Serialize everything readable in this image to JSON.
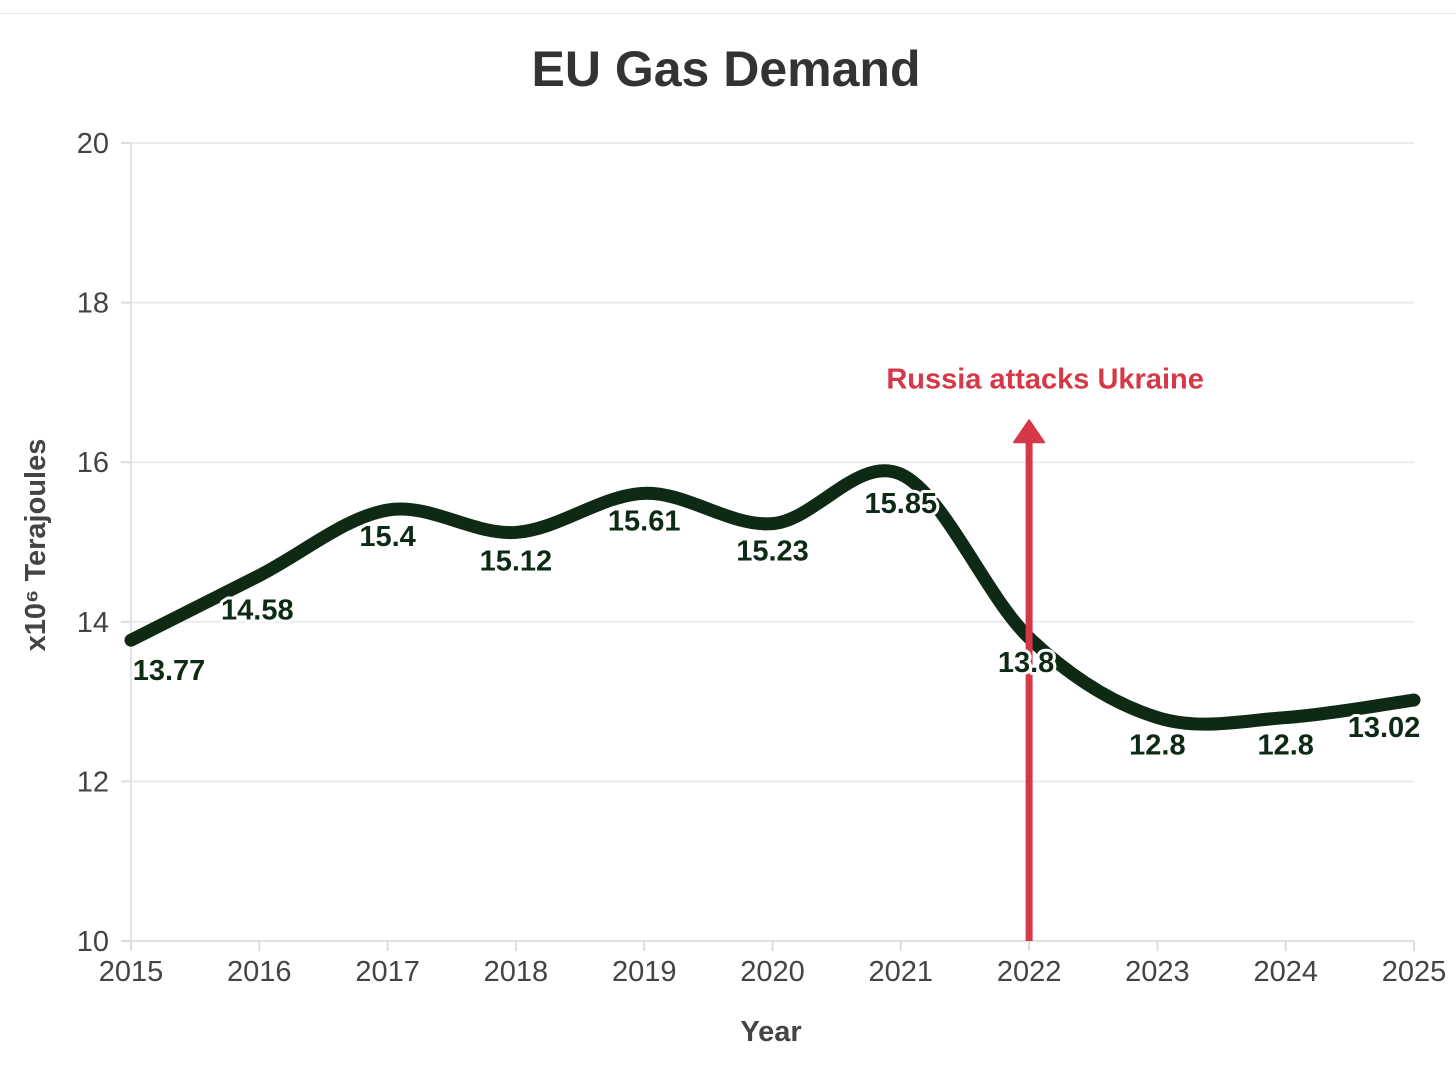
{
  "chart_data": {
    "type": "line",
    "title": "EU Gas Demand",
    "xlabel": "Year",
    "ylabel": "x10⁶ Terajoules",
    "x": [
      2015,
      2016,
      2017,
      2018,
      2019,
      2020,
      2021,
      2022,
      2023,
      2024,
      2025
    ],
    "x_tick_labels": [
      "2015",
      "2016",
      "2017",
      "2018",
      "2019",
      "2020",
      "2021",
      "2022",
      "2023",
      "2024",
      "2025"
    ],
    "y_ticks": [
      10,
      12,
      14,
      16,
      18,
      20
    ],
    "y_tick_labels": [
      "10",
      "12",
      "14",
      "16",
      "18",
      "20"
    ],
    "ylim": [
      10,
      20
    ],
    "xlim": [
      2015,
      2025
    ],
    "grid": true,
    "series": [
      {
        "name": "EU Gas Demand",
        "color": "#0f2a14",
        "values": [
          13.77,
          14.58,
          15.4,
          15.12,
          15.61,
          15.23,
          15.85,
          13.8,
          12.8,
          12.8,
          13.02
        ],
        "labels": [
          "13.77",
          "14.58",
          "15.4",
          "15.12",
          "15.61",
          "15.23",
          "15.85",
          "13.8",
          "12.8",
          "12.8",
          "13.02"
        ]
      }
    ],
    "annotations": [
      {
        "text": "Russia attacks Ukraine",
        "x": 2022,
        "color": "#d63848",
        "arrow_from": 10,
        "arrow_to": 16.5
      }
    ]
  }
}
